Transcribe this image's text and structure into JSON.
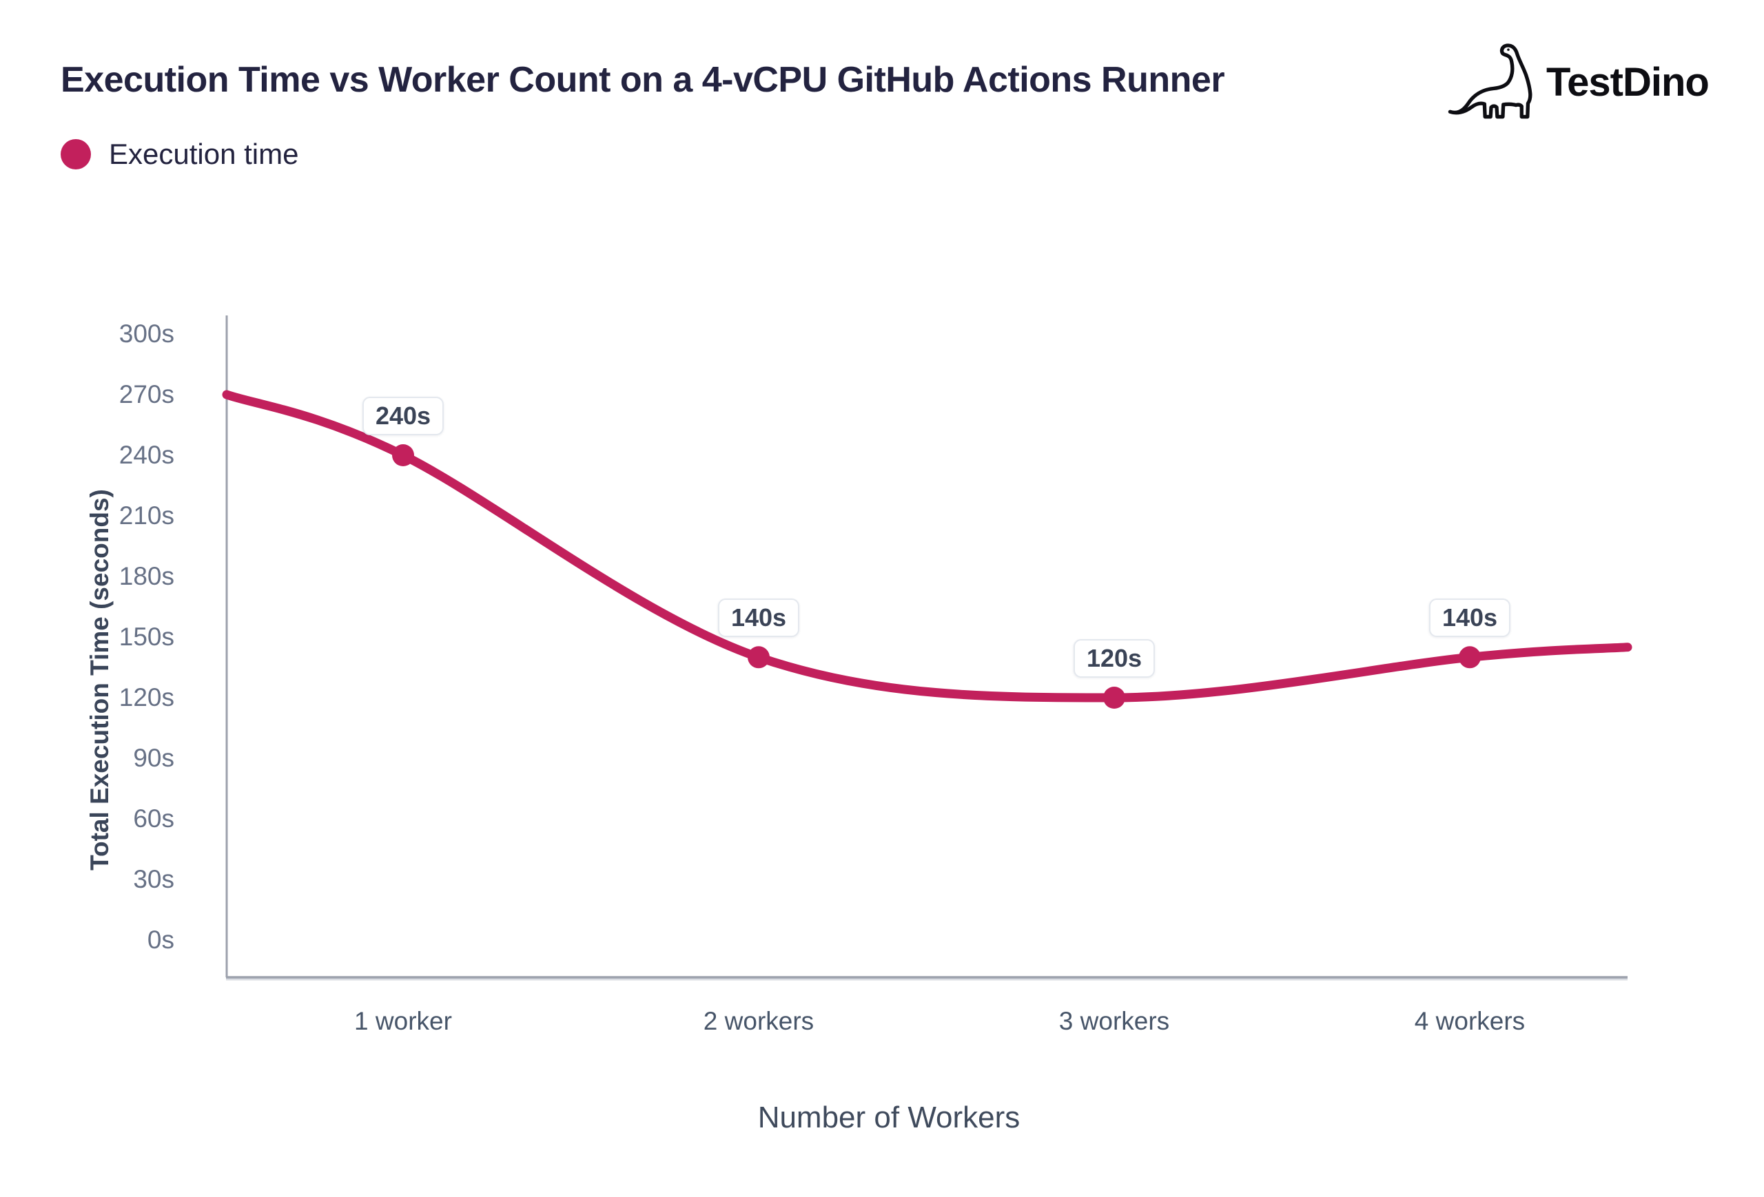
{
  "header": {
    "title": "Execution Time vs Worker Count on a 4-vCPU GitHub Actions Runner",
    "brand": {
      "name": "TestDino",
      "icon": "dinosaur-icon"
    }
  },
  "legend": {
    "items": [
      {
        "label": "Execution time",
        "color": "#C2205C"
      }
    ]
  },
  "chart_data": {
    "type": "line",
    "title": "Execution Time vs Worker Count on a 4-vCPU GitHub Actions Runner",
    "categories": [
      "1 worker",
      "2 workers",
      "3 workers",
      "4 workers"
    ],
    "series": [
      {
        "name": "Execution time",
        "values": [
          240,
          140,
          120,
          140
        ],
        "point_labels": [
          "240s",
          "140s",
          "120s",
          "140s"
        ],
        "color": "#C2205C"
      }
    ],
    "xlabel": "Number of Workers",
    "ylabel": "Total Execution Time (seconds)",
    "ylim": [
      0,
      300
    ],
    "ytick_step": 30,
    "ytick_labels": [
      "300s",
      "270s",
      "240s",
      "210s",
      "180s",
      "150s",
      "120s",
      "90s",
      "60s",
      "30s",
      "0s"
    ],
    "smooth": true,
    "grid": false,
    "legend_position": "top-left",
    "curve_extends_to_plot_edges": true,
    "edge_start_value": 270,
    "edge_end_value": 145
  },
  "style": {
    "accent": "#C2205C",
    "title_color": "#232340",
    "ytick_color": "#667085",
    "xtick_color": "#475569",
    "axis_title_color": "#3A4559",
    "axis_line_color": "#9CA1AC",
    "axis_line_shadow": "#D9DCE2",
    "badge_border": "#E4E8EE",
    "badge_text": "#3A4356"
  }
}
